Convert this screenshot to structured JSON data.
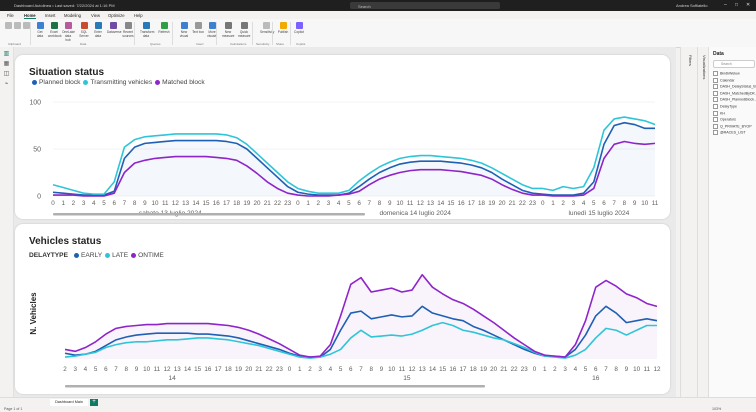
{
  "window": {
    "title": "Dashboard Autolinea • Last saved: 7/22/2024 at 1:16 PM",
    "search_placeholder": "Search",
    "user": "Andrea Soffiatello"
  },
  "menu": [
    "File",
    "Home",
    "Insert",
    "Modeling",
    "View",
    "Optimize",
    "Help"
  ],
  "menu_active": "Home",
  "ribbon": {
    "buttons": [
      "Get data",
      "Excel workbook",
      "OneLake data hub",
      "SQL Server",
      "Enter data",
      "Dataverse",
      "Recent sources",
      "Transform data",
      "Refresh",
      "New visual",
      "Text box",
      "More visuals",
      "New measure",
      "Quick measure",
      "Sensitivity",
      "Publish",
      "Copilot"
    ],
    "groups": [
      "Clipboard",
      "Data",
      "Queries",
      "Insert",
      "Calculations",
      "Sensitivity",
      "Share",
      "Copilot"
    ]
  },
  "panes": {
    "filters_label": "Filters",
    "visualizations_label": "Visualizations",
    "data_title": "Data",
    "data_search_placeholder": "Search",
    "data_items": [
      "BindkWeluw",
      "Calendar",
      "DASH_DelayStatus_BYOP",
      "DASH_MatchedByDK...",
      "DASH_PlannedBlock...",
      "DelayType",
      "KH",
      "Operators",
      "Q_PRIVATE_BYOP",
      "@RACES_LIST"
    ]
  },
  "chart_data": [
    {
      "type": "line",
      "title": "Situation status",
      "legend_position": "top-left",
      "grid": true,
      "ylim": [
        0,
        100
      ],
      "yticks": [
        0,
        50,
        100
      ],
      "x": [
        0,
        1,
        2,
        3,
        4,
        5,
        6,
        7,
        8,
        9,
        10,
        11,
        12,
        13,
        14,
        15,
        16,
        17,
        18,
        19,
        20,
        21,
        22,
        23,
        0,
        1,
        2,
        3,
        4,
        5,
        6,
        7,
        8,
        9,
        10,
        11,
        12,
        13,
        14,
        15,
        16,
        17,
        18,
        19,
        20,
        21,
        22,
        23,
        0,
        1,
        2,
        3,
        4,
        5,
        6,
        7,
        8,
        9,
        10,
        11
      ],
      "x_groups": [
        {
          "label": "sabato 13 luglio 2024",
          "start": 0,
          "end": 23
        },
        {
          "label": "domenica 14 luglio 2024",
          "start": 24,
          "end": 47
        },
        {
          "label": "lunedì 15 luglio 2024",
          "start": 48,
          "end": 59
        }
      ],
      "series": [
        {
          "name": "Planned block",
          "color": "#1f5fb4",
          "values": [
            4,
            3,
            2,
            1,
            1,
            1,
            5,
            40,
            52,
            56,
            57,
            58,
            59,
            59,
            59,
            59,
            59,
            58,
            56,
            50,
            40,
            30,
            20,
            10,
            4,
            2,
            1,
            1,
            1,
            3,
            10,
            18,
            25,
            30,
            34,
            36,
            37,
            37,
            37,
            36,
            35,
            33,
            30,
            25,
            18,
            12,
            6,
            3,
            2,
            1,
            1,
            1,
            3,
            15,
            55,
            75,
            78,
            76,
            72,
            72
          ]
        },
        {
          "name": "Transmitting vehicles",
          "color": "#2ec5d8",
          "values": [
            12,
            9,
            6,
            3,
            2,
            2,
            15,
            52,
            60,
            63,
            64,
            65,
            66,
            66,
            66,
            66,
            66,
            65,
            62,
            55,
            45,
            35,
            25,
            15,
            8,
            5,
            3,
            3,
            3,
            6,
            16,
            24,
            31,
            36,
            40,
            42,
            43,
            43,
            42,
            41,
            40,
            38,
            35,
            30,
            24,
            18,
            12,
            8,
            8,
            6,
            10,
            8,
            10,
            30,
            70,
            82,
            84,
            82,
            80,
            76
          ]
        },
        {
          "name": "Matched block",
          "color": "#8e24c9",
          "values": [
            1,
            1,
            1,
            0,
            0,
            0,
            3,
            25,
            35,
            38,
            40,
            41,
            42,
            42,
            42,
            42,
            41,
            40,
            38,
            32,
            24,
            15,
            8,
            3,
            1,
            0,
            0,
            0,
            1,
            2,
            5,
            12,
            18,
            22,
            25,
            27,
            28,
            28,
            28,
            27,
            26,
            24,
            22,
            18,
            12,
            7,
            3,
            1,
            1,
            0,
            0,
            0,
            1,
            8,
            40,
            55,
            58,
            56,
            55,
            56
          ]
        }
      ]
    },
    {
      "type": "line",
      "title": "Vehicles status",
      "legend_title": "DELAYTYPE",
      "legend_position": "top-left",
      "ylabel": "N. Vehicles",
      "x": [
        2,
        3,
        4,
        5,
        6,
        7,
        8,
        9,
        10,
        11,
        12,
        13,
        14,
        15,
        16,
        17,
        18,
        19,
        20,
        21,
        22,
        23,
        0,
        1,
        2,
        3,
        4,
        5,
        6,
        7,
        8,
        9,
        10,
        11,
        12,
        13,
        14,
        15,
        16,
        17,
        18,
        19,
        20,
        21,
        22,
        23,
        0,
        1,
        2,
        3,
        4,
        5,
        6,
        7,
        8,
        9,
        10,
        11,
        12
      ],
      "x_groups": [
        {
          "label": "14",
          "start": 0,
          "end": 21
        },
        {
          "label": "15",
          "start": 22,
          "end": 45
        },
        {
          "label": "16",
          "start": 46,
          "end": 58
        }
      ],
      "series": [
        {
          "name": "EARLY",
          "color": "#1f5fb4",
          "values": [
            6,
            4,
            5,
            8,
            14,
            20,
            23,
            25,
            26,
            27,
            27,
            27,
            27,
            26,
            26,
            25,
            24,
            22,
            19,
            16,
            13,
            10,
            6,
            3,
            2,
            2,
            10,
            30,
            48,
            50,
            42,
            44,
            46,
            44,
            45,
            55,
            48,
            45,
            42,
            40,
            34,
            30,
            25,
            20,
            15,
            10,
            6,
            3,
            3,
            2,
            10,
            25,
            45,
            55,
            48,
            38,
            40,
            42,
            40
          ]
        },
        {
          "name": "LATE",
          "color": "#2ec5d8",
          "values": [
            2,
            3,
            5,
            7,
            12,
            15,
            17,
            18,
            18,
            19,
            20,
            20,
            21,
            22,
            22,
            21,
            20,
            18,
            16,
            14,
            11,
            8,
            5,
            2,
            1,
            2,
            5,
            10,
            22,
            30,
            23,
            24,
            25,
            24,
            26,
            30,
            35,
            38,
            35,
            30,
            28,
            25,
            22,
            20,
            16,
            12,
            7,
            3,
            2,
            1,
            4,
            10,
            22,
            32,
            30,
            25,
            30,
            35,
            35
          ]
        },
        {
          "name": "ONTIME",
          "color": "#8e24c9",
          "values": [
            10,
            8,
            12,
            18,
            26,
            32,
            34,
            35,
            36,
            36,
            37,
            37,
            37,
            37,
            37,
            36,
            35,
            33,
            30,
            26,
            21,
            16,
            10,
            4,
            2,
            3,
            15,
            45,
            78,
            85,
            70,
            72,
            74,
            70,
            72,
            88,
            75,
            68,
            62,
            58,
            52,
            45,
            38,
            30,
            22,
            15,
            8,
            4,
            3,
            2,
            15,
            40,
            75,
            82,
            76,
            68,
            64,
            58,
            55
          ]
        }
      ]
    }
  ],
  "tabs": {
    "active": "Dashboard Main",
    "add_label": "+"
  },
  "status": {
    "page": "Page 1 of 1",
    "zoom": "103%"
  }
}
